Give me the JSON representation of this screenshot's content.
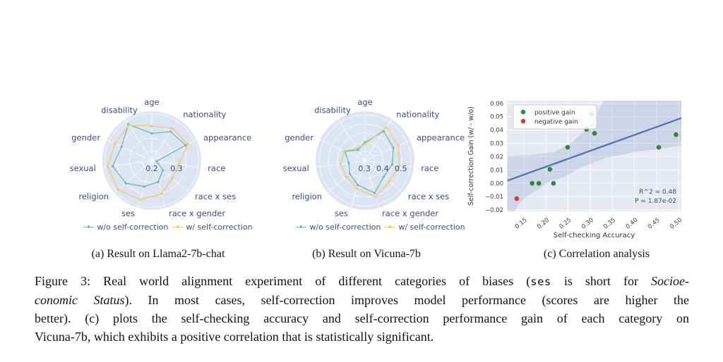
{
  "colors": {
    "teal": "#69b9b5",
    "orange": "#f0c86b",
    "radar_bg": "#dde4f1",
    "radar_grid": "#ffffff",
    "radar_text": "#3e4e7e",
    "scatter_bg": "#e6e9f2",
    "scatter_grid": "#ffffff",
    "regression_blue": "#4d72b0",
    "ci_band": "#4d72b0",
    "positive_green": "#2f8a2d",
    "negative_red": "#e4342c",
    "tick_text": "#3f3f3f",
    "annotation_text": "#4d4d4d"
  },
  "radar_legend": {
    "series": [
      {
        "label": "w/o self-correction"
      },
      {
        "label": "w/ self-correction"
      }
    ]
  },
  "figure": {
    "subcaptions": [
      "(a) Result on Llama2-7b-chat",
      "(b) Result on Vicuna-7b",
      "(c) Correlation analysis"
    ],
    "caption": {
      "lines": [
        [
          {
            "t": "Figure 3: Real world alignment experiment of different categories of biases (",
            "s": "n"
          },
          {
            "t": "ses",
            "s": "m"
          },
          {
            "t": " is short for ",
            "s": "n"
          },
          {
            "t": "Socioe-",
            "s": "i"
          }
        ],
        [
          {
            "t": "conomic Status",
            "s": "i"
          },
          {
            "t": "). In most cases, self-correction improves model performance (scores are higher the",
            "s": "n"
          }
        ],
        [
          {
            "t": "better). (c) plots the self-checking accuracy and self-correction performance gain of each category on",
            "s": "n"
          }
        ],
        [
          {
            "t": "Vicuna-7b, which exhibits a positive correlation that is statistically significant.",
            "s": "n"
          }
        ]
      ]
    }
  },
  "chart_data": [
    {
      "type": "radar",
      "title": "(a) Result on Llama2-7b-chat",
      "categories": [
        "age",
        "nationality",
        "appearance",
        "race",
        "race x ses",
        "race x gender",
        "ses",
        "religion",
        "sexual",
        "gender",
        "disability"
      ],
      "r_min": 0.16,
      "r_max": 0.36,
      "rings": [
        0.2,
        0.25,
        0.3,
        0.35
      ],
      "r_ticks": {
        "values": [
          0.2,
          0.3
        ],
        "labels": [
          "0.2",
          "0.3"
        ]
      },
      "series": [
        {
          "name": "w/o self-correction",
          "color_key": "teal",
          "values": [
            0.27,
            0.3,
            0.31,
            0.18,
            0.22,
            0.25,
            0.27,
            0.3,
            0.32,
            0.295,
            0.335
          ]
        },
        {
          "name": "w/ self-correction",
          "color_key": "orange",
          "values": [
            0.3,
            0.315,
            0.32,
            0.27,
            0.27,
            0.3,
            0.325,
            0.34,
            0.34,
            0.325,
            0.33
          ]
        }
      ]
    },
    {
      "type": "radar",
      "title": "(b) Result on Vicuna-7b",
      "categories": [
        "age",
        "nationality",
        "appearance",
        "race",
        "race x ses",
        "race x gender",
        "ses",
        "religion",
        "sexual",
        "gender",
        "disability"
      ],
      "r_min": 0.25,
      "r_max": 0.52,
      "rings": [
        0.3,
        0.35,
        0.4,
        0.45,
        0.5
      ],
      "r_ticks": {
        "values": [
          0.3,
          0.4,
          0.5
        ],
        "labels": [
          "0.3",
          "0.4",
          "0.5"
        ]
      },
      "series": [
        {
          "name": "w/o self-correction",
          "color_key": "teal",
          "values": [
            0.35,
            0.44,
            0.42,
            0.4,
            0.385,
            0.435,
            0.39,
            0.36,
            0.34,
            0.37,
            0.32
          ]
        },
        {
          "name": "w/ self-correction",
          "color_key": "orange",
          "values": [
            0.34,
            0.465,
            0.45,
            0.44,
            0.425,
            0.455,
            0.41,
            0.385,
            0.385,
            0.375,
            0.33
          ]
        }
      ]
    },
    {
      "type": "scatter",
      "title": "(c) Correlation analysis",
      "xlabel": "Self-checking Accuracy",
      "ylabel": "Self-correction Gain (w/ - w/o)",
      "xlim": [
        0.112,
        0.506
      ],
      "ylim": [
        -0.021,
        0.062
      ],
      "x_ticks": {
        "values": [
          0.15,
          0.2,
          0.25,
          0.3,
          0.35,
          0.4,
          0.45,
          0.5
        ],
        "labels": [
          "0.15",
          "0.20",
          "0.25",
          "0.30",
          "0.35",
          "0.40",
          "0.45",
          "0.50"
        ]
      },
      "y_ticks": {
        "values": [
          0.06,
          0.05,
          0.04,
          0.03,
          0.02,
          0.01,
          0.0,
          -0.01,
          -0.02
        ],
        "labels": [
          "0.06",
          "0.05",
          "0.04",
          "0.03",
          "0.02",
          "0.01",
          "0.00",
          "−0.01",
          "−0.02"
        ]
      },
      "legend": [
        {
          "label": "positive gain",
          "color_key": "positive_green"
        },
        {
          "label": "negative gain",
          "color_key": "negative_red"
        }
      ],
      "series": [
        {
          "name": "positive gain",
          "color_key": "positive_green",
          "points": [
            [
              0.169,
              0.0
            ],
            [
              0.184,
              0.0
            ],
            [
              0.209,
              0.0105
            ],
            [
              0.217,
              0.0
            ],
            [
              0.249,
              0.027
            ],
            [
              0.292,
              0.0405
            ],
            [
              0.303,
              0.052
            ],
            [
              0.31,
              0.0375
            ],
            [
              0.455,
              0.027
            ],
            [
              0.494,
              0.0365
            ]
          ]
        },
        {
          "name": "negative gain",
          "color_key": "negative_red",
          "points": [
            [
              0.134,
              -0.0115
            ]
          ]
        }
      ],
      "regression": {
        "x1": 0.113,
        "y1": 0.002,
        "x2": 0.506,
        "y2": 0.049
      },
      "ci_band": [
        [
          0.113,
          0.0205
        ],
        [
          0.17,
          0.0215
        ],
        [
          0.22,
          0.0235
        ],
        [
          0.26,
          0.031
        ],
        [
          0.3,
          0.044
        ],
        [
          0.34,
          0.068
        ],
        [
          0.506,
          0.068
        ],
        [
          0.506,
          0.0285
        ],
        [
          0.46,
          0.026
        ],
        [
          0.4,
          0.0235
        ],
        [
          0.335,
          0.019
        ],
        [
          0.28,
          0.012
        ],
        [
          0.24,
          0.0045
        ],
        [
          0.21,
          0.002
        ],
        [
          0.19,
          -0.003
        ],
        [
          0.16,
          -0.009
        ],
        [
          0.14,
          -0.015
        ],
        [
          0.125,
          -0.023
        ],
        [
          0.113,
          -0.023
        ]
      ],
      "annotations": [
        "R^2 = 0.48",
        "P = 1.87e-02"
      ]
    }
  ]
}
